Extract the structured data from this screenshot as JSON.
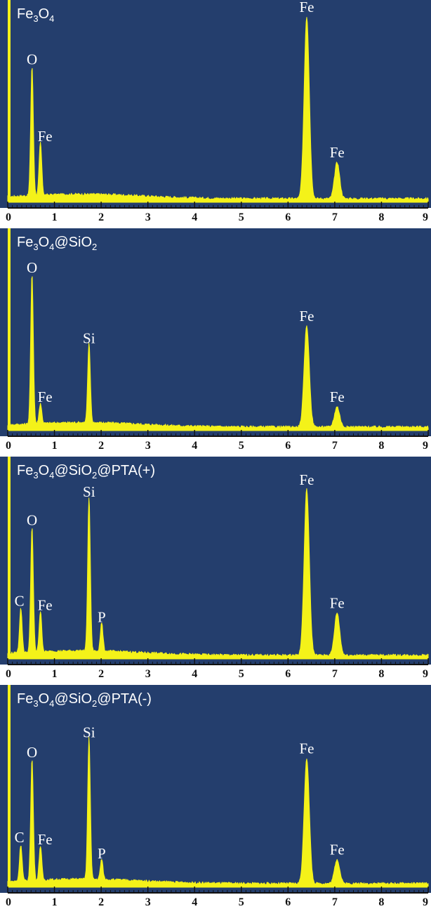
{
  "chart_data": [
    {
      "type": "area",
      "title_parts": [
        {
          "text": "Fe",
          "sub": false
        },
        {
          "text": "3",
          "sub": true
        },
        {
          "text": "O",
          "sub": false
        },
        {
          "text": "4",
          "sub": true
        }
      ],
      "xlabel": "",
      "ylabel": "",
      "xlim": [
        0,
        9
      ],
      "x_ticks": [
        "0",
        "1",
        "2",
        "3",
        "4",
        "5",
        "6",
        "7",
        "8",
        "9"
      ],
      "background_color": "#243e6d",
      "trace_color": "#f4f219",
      "peaks": [
        {
          "label": "O",
          "x": 0.52,
          "height": 0.64
        },
        {
          "label": "Fe",
          "x": 0.7,
          "height": 0.26
        },
        {
          "label": "Fe",
          "x": 6.4,
          "height": 0.9
        },
        {
          "label": "Fe",
          "x": 7.05,
          "height": 0.18
        }
      ]
    },
    {
      "type": "area",
      "title_parts": [
        {
          "text": "Fe",
          "sub": false
        },
        {
          "text": "3",
          "sub": true
        },
        {
          "text": "O",
          "sub": false
        },
        {
          "text": "4",
          "sub": true
        },
        {
          "text": "@SiO",
          "sub": false
        },
        {
          "text": "2",
          "sub": true
        }
      ],
      "xlabel": "",
      "ylabel": "",
      "xlim": [
        0,
        9
      ],
      "x_ticks": [
        "0",
        "1",
        "2",
        "3",
        "4",
        "5",
        "6",
        "7",
        "8",
        "9"
      ],
      "background_color": "#243e6d",
      "trace_color": "#f4f219",
      "peaks": [
        {
          "label": "O",
          "x": 0.52,
          "height": 0.74
        },
        {
          "label": "Fe",
          "x": 0.7,
          "height": 0.1
        },
        {
          "label": "Si",
          "x": 1.74,
          "height": 0.39
        },
        {
          "label": "Fe",
          "x": 6.4,
          "height": 0.5
        },
        {
          "label": "Fe",
          "x": 7.05,
          "height": 0.1
        }
      ]
    },
    {
      "type": "area",
      "title_parts": [
        {
          "text": "Fe",
          "sub": false
        },
        {
          "text": "3",
          "sub": true
        },
        {
          "text": "O",
          "sub": false
        },
        {
          "text": "4",
          "sub": true
        },
        {
          "text": "@SiO",
          "sub": false
        },
        {
          "text": "2",
          "sub": true
        },
        {
          "text": "@PTA(+)",
          "sub": false
        }
      ],
      "xlabel": "",
      "ylabel": "",
      "xlim": [
        0,
        9
      ],
      "x_ticks": [
        "0",
        "1",
        "2",
        "3",
        "4",
        "5",
        "6",
        "7",
        "8",
        "9"
      ],
      "background_color": "#243e6d",
      "trace_color": "#f4f219",
      "peaks": [
        {
          "label": "C",
          "x": 0.28,
          "height": 0.22
        },
        {
          "label": "O",
          "x": 0.52,
          "height": 0.62
        },
        {
          "label": "Fe",
          "x": 0.7,
          "height": 0.2
        },
        {
          "label": "Si",
          "x": 1.74,
          "height": 0.76
        },
        {
          "label": "P",
          "x": 2.01,
          "height": 0.14
        },
        {
          "label": "Fe",
          "x": 6.4,
          "height": 0.82
        },
        {
          "label": "Fe",
          "x": 7.05,
          "height": 0.21
        }
      ]
    },
    {
      "type": "area",
      "title_parts": [
        {
          "text": "Fe",
          "sub": false
        },
        {
          "text": "3",
          "sub": true
        },
        {
          "text": "O",
          "sub": false
        },
        {
          "text": "4",
          "sub": true
        },
        {
          "text": "@SiO",
          "sub": false
        },
        {
          "text": "2",
          "sub": true
        },
        {
          "text": "@PTA(-)",
          "sub": false
        }
      ],
      "xlabel": "",
      "ylabel": "",
      "xlim": [
        0,
        9
      ],
      "x_ticks": [
        "0",
        "1",
        "2",
        "3",
        "4",
        "5",
        "6",
        "7",
        "8",
        "9"
      ],
      "background_color": "#243e6d",
      "trace_color": "#f4f219",
      "peaks": [
        {
          "label": "C",
          "x": 0.28,
          "height": 0.18
        },
        {
          "label": "O",
          "x": 0.52,
          "height": 0.6
        },
        {
          "label": "Fe",
          "x": 0.7,
          "height": 0.17
        },
        {
          "label": "Si",
          "x": 1.74,
          "height": 0.7
        },
        {
          "label": "P",
          "x": 2.01,
          "height": 0.1
        },
        {
          "label": "Fe",
          "x": 6.4,
          "height": 0.62
        },
        {
          "label": "Fe",
          "x": 7.05,
          "height": 0.12
        }
      ]
    }
  ]
}
